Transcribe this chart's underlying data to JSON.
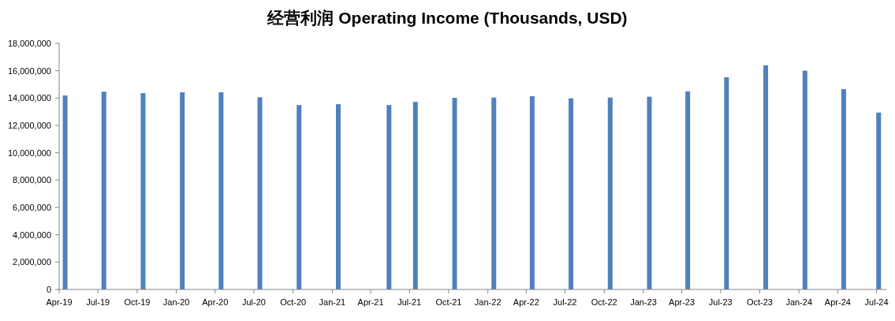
{
  "chart_data": {
    "type": "bar",
    "title": "经营利润 Operating Income (Thousands, USD)",
    "color": "#4f81bd",
    "x": [
      "2019-04-15",
      "2019-07-15",
      "2019-10-15",
      "2020-01-15",
      "2020-04-15",
      "2020-07-15",
      "2020-10-15",
      "2021-01-15",
      "2021-05-14",
      "2021-07-15",
      "2021-10-15",
      "2022-01-15",
      "2022-04-15",
      "2022-07-15",
      "2022-10-15",
      "2023-01-15",
      "2023-04-15",
      "2023-07-15",
      "2023-10-15",
      "2024-01-15",
      "2024-04-15",
      "2024-07-06"
    ],
    "values": [
      14190000,
      14460000,
      14360000,
      14420000,
      14420000,
      14060000,
      13490000,
      13550000,
      13490000,
      13720000,
      14020000,
      14040000,
      14140000,
      13980000,
      14040000,
      14100000,
      14490000,
      15520000,
      16390000,
      16000000,
      14650000,
      12940000
    ],
    "xlim": [
      "2019-04-01",
      "2024-07-24"
    ],
    "xticks": [
      {
        "value": "2019-04-01",
        "label": "Apr-19"
      },
      {
        "value": "2019-07-01",
        "label": "Jul-19"
      },
      {
        "value": "2019-10-01",
        "label": "Oct-19"
      },
      {
        "value": "2020-01-01",
        "label": "Jan-20"
      },
      {
        "value": "2020-04-01",
        "label": "Apr-20"
      },
      {
        "value": "2020-07-01",
        "label": "Jul-20"
      },
      {
        "value": "2020-10-01",
        "label": "Oct-20"
      },
      {
        "value": "2021-01-01",
        "label": "Jan-21"
      },
      {
        "value": "2021-04-01",
        "label": "Apr-21"
      },
      {
        "value": "2021-07-01",
        "label": "Jul-21"
      },
      {
        "value": "2021-10-01",
        "label": "Oct-21"
      },
      {
        "value": "2022-01-01",
        "label": "Jan-22"
      },
      {
        "value": "2022-04-01",
        "label": "Apr-22"
      },
      {
        "value": "2022-07-01",
        "label": "Jul-22"
      },
      {
        "value": "2022-10-01",
        "label": "Oct-22"
      },
      {
        "value": "2023-01-01",
        "label": "Jan-23"
      },
      {
        "value": "2023-04-01",
        "label": "Apr-23"
      },
      {
        "value": "2023-07-01",
        "label": "Jul-23"
      },
      {
        "value": "2023-10-01",
        "label": "Oct-23"
      },
      {
        "value": "2024-01-01",
        "label": "Jan-24"
      },
      {
        "value": "2024-04-01",
        "label": "Apr-24"
      },
      {
        "value": "2024-07-01",
        "label": "Jul-24"
      }
    ],
    "ylim": [
      0,
      18000000
    ],
    "yticks": [
      {
        "value": 0,
        "label": "0"
      },
      {
        "value": 2000000,
        "label": "2,000,000"
      },
      {
        "value": 4000000,
        "label": "4,000,000"
      },
      {
        "value": 6000000,
        "label": "6,000,000"
      },
      {
        "value": 8000000,
        "label": "8,000,000"
      },
      {
        "value": 10000000,
        "label": "10,000,000"
      },
      {
        "value": 12000000,
        "label": "12,000,000"
      },
      {
        "value": 14000000,
        "label": "14,000,000"
      },
      {
        "value": 16000000,
        "label": "16,000,000"
      },
      {
        "value": 18000000,
        "label": "18,000,000"
      }
    ]
  }
}
